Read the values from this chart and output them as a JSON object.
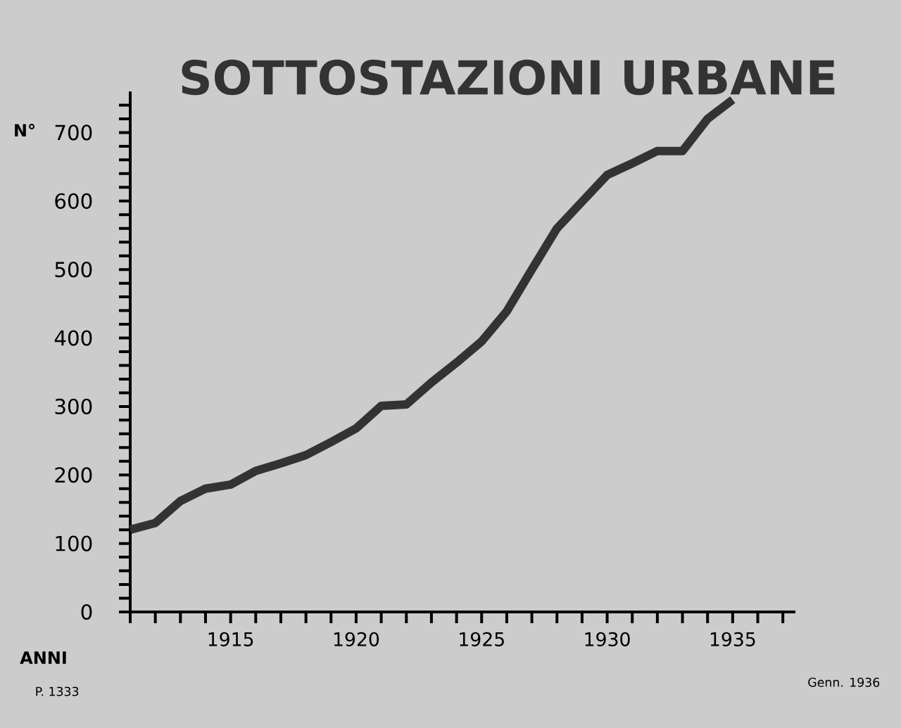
{
  "chart_data": {
    "type": "line",
    "title": "SOTTOSTAZIONI URBANE",
    "ylabel": "N°",
    "xlabel": "ANNI",
    "x": [
      1911,
      1912,
      1913,
      1914,
      1915,
      1916,
      1917,
      1918,
      1919,
      1920,
      1921,
      1922,
      1923,
      1924,
      1925,
      1926,
      1927,
      1928,
      1929,
      1930,
      1931,
      1932,
      1933,
      1934,
      1935
    ],
    "values": [
      120,
      130,
      162,
      180,
      186,
      206,
      217,
      229,
      248,
      268,
      301,
      303,
      335,
      364,
      395,
      439,
      500,
      560,
      599,
      638,
      655,
      673,
      673,
      720,
      748
    ],
    "color": "#333333",
    "xlim": [
      1911,
      1937.5
    ],
    "xticks": [
      {
        "value": 1911,
        "label": null
      },
      {
        "value": 1912,
        "label": null
      },
      {
        "value": 1913,
        "label": null
      },
      {
        "value": 1914,
        "label": null
      },
      1915,
      {
        "value": 1916,
        "label": null
      },
      {
        "value": 1917,
        "label": null
      },
      {
        "value": 1918,
        "label": null
      },
      {
        "value": 1919,
        "label": null
      },
      1920,
      {
        "value": 1921,
        "label": null
      },
      {
        "value": 1922,
        "label": null
      },
      {
        "value": 1923,
        "label": null
      },
      {
        "value": 1924,
        "label": null
      },
      1925,
      {
        "value": 1926,
        "label": null
      },
      {
        "value": 1927,
        "label": null
      },
      {
        "value": 1928,
        "label": null
      },
      {
        "value": 1929,
        "label": null
      },
      1930,
      {
        "value": 1931,
        "label": null
      },
      {
        "value": 1932,
        "label": null
      },
      {
        "value": 1933,
        "label": null
      },
      {
        "value": 1934,
        "label": null
      },
      1935,
      {
        "value": 1936,
        "label": null
      },
      {
        "value": 1937,
        "label": null
      }
    ],
    "ylim": [
      0,
      760
    ],
    "yticks": [
      0,
      {
        "value": 20,
        "label": null
      },
      {
        "value": 40,
        "label": null
      },
      {
        "value": 60,
        "label": null
      },
      {
        "value": 80,
        "label": null
      },
      100,
      {
        "value": 120,
        "label": null
      },
      {
        "value": 140,
        "label": null
      },
      {
        "value": 160,
        "label": null
      },
      {
        "value": 180,
        "label": null
      },
      200,
      {
        "value": 220,
        "label": null
      },
      {
        "value": 240,
        "label": null
      },
      {
        "value": 260,
        "label": null
      },
      {
        "value": 280,
        "label": null
      },
      300,
      {
        "value": 320,
        "label": null
      },
      {
        "value": 340,
        "label": null
      },
      {
        "value": 360,
        "label": null
      },
      {
        "value": 380,
        "label": null
      },
      400,
      {
        "value": 420,
        "label": null
      },
      {
        "value": 440,
        "label": null
      },
      {
        "value": 460,
        "label": null
      },
      {
        "value": 480,
        "label": null
      },
      500,
      {
        "value": 520,
        "label": null
      },
      {
        "value": 540,
        "label": null
      },
      {
        "value": 560,
        "label": null
      },
      {
        "value": 580,
        "label": null
      },
      600,
      {
        "value": 620,
        "label": null
      },
      {
        "value": 640,
        "label": null
      },
      {
        "value": 660,
        "label": null
      },
      {
        "value": 680,
        "label": null
      },
      700,
      {
        "value": 720,
        "label": null
      },
      {
        "value": 740,
        "label": null
      }
    ],
    "grid": false,
    "marker": "none",
    "line_style": "solid",
    "annotations": [
      "P. 1333",
      "Genn. 1936"
    ]
  }
}
